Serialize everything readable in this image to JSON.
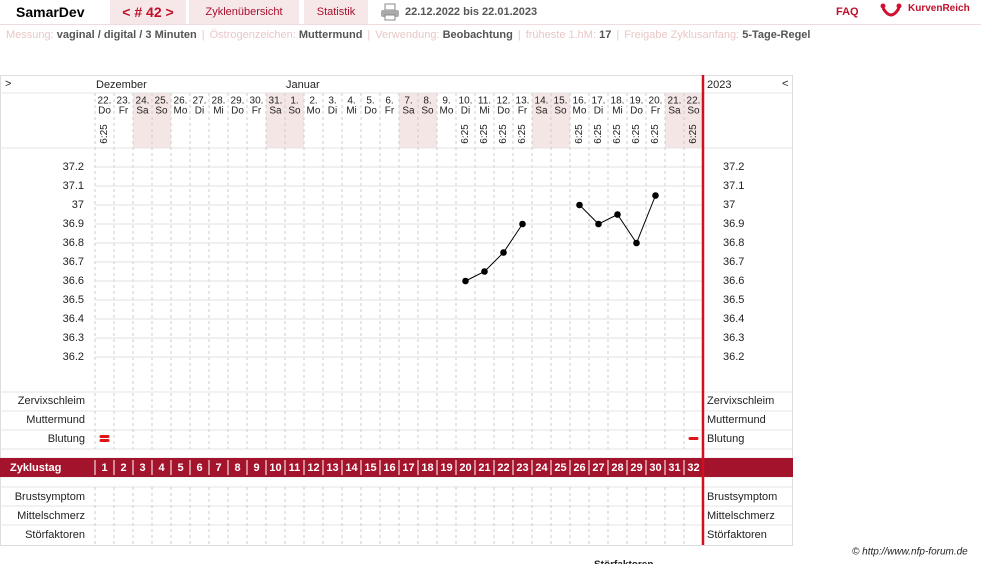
{
  "header": {
    "app": "SamarDev",
    "cycle": "< # 42 >",
    "tabs": [
      "Zyklenübersicht",
      "Statistik"
    ],
    "period": "22.12.2022 bis 22.01.2023",
    "faq": "FAQ",
    "logo": "KurvenReich"
  },
  "settings": [
    {
      "label": "Messung:",
      "value": "vaginal / digital / 3 Minuten"
    },
    {
      "label": "Östrogenzeichen:",
      "value": "Muttermund"
    },
    {
      "label": "Verwendung:",
      "value": "Beobachtung"
    },
    {
      "label": "früheste 1.hM:",
      "value": "17"
    },
    {
      "label": "Freigabe Zyklusanfang:",
      "value": "5-Tage-Regel"
    }
  ],
  "chart_data": {
    "type": "line",
    "nav_left": ">",
    "nav_right": "<",
    "year": "2023",
    "months": [
      "Dezember",
      null,
      null,
      null,
      null,
      null,
      null,
      null,
      null,
      null,
      "Januar",
      null,
      null,
      null,
      null,
      null,
      null,
      null,
      null,
      null,
      null,
      null,
      null,
      null,
      null,
      null,
      null,
      null,
      null,
      null,
      null,
      null
    ],
    "dates": [
      "22.",
      "23.",
      "24.",
      "25.",
      "26.",
      "27.",
      "28.",
      "29.",
      "30.",
      "31.",
      "1.",
      "2.",
      "3.",
      "4.",
      "5.",
      "6.",
      "7.",
      "8.",
      "9.",
      "10.",
      "11.",
      "12.",
      "13.",
      "14.",
      "15.",
      "16.",
      "17.",
      "18.",
      "19.",
      "20.",
      "21.",
      "22."
    ],
    "weekdays": [
      "Do",
      "Fr",
      "Sa",
      "So",
      "Mo",
      "Di",
      "Mi",
      "Do",
      "Fr",
      "Sa",
      "So",
      "Mo",
      "Di",
      "Mi",
      "Do",
      "Fr",
      "Sa",
      "So",
      "Mo",
      "Di",
      "Mi",
      "Do",
      "Fr",
      "Sa",
      "So",
      "Mo",
      "Di",
      "Mi",
      "Do",
      "Fr",
      "Sa",
      "So"
    ],
    "weekend": [
      false,
      false,
      true,
      true,
      false,
      false,
      false,
      false,
      false,
      true,
      true,
      false,
      false,
      false,
      false,
      false,
      true,
      true,
      false,
      false,
      false,
      false,
      false,
      true,
      true,
      false,
      false,
      false,
      false,
      false,
      true,
      true
    ],
    "times": [
      "6:25",
      null,
      null,
      null,
      null,
      null,
      null,
      null,
      null,
      null,
      null,
      null,
      null,
      null,
      null,
      null,
      null,
      null,
      null,
      "6:25",
      "6:25",
      "6:25",
      "6:25",
      null,
      null,
      "6:25",
      "6:25",
      "6:25",
      "6:25",
      "6:25",
      null,
      "6:25"
    ],
    "values": [
      null,
      null,
      null,
      null,
      null,
      null,
      null,
      null,
      null,
      null,
      null,
      null,
      null,
      null,
      null,
      null,
      null,
      null,
      null,
      36.6,
      36.65,
      36.75,
      36.9,
      null,
      null,
      37.0,
      36.9,
      36.95,
      36.8,
      37.05,
      null,
      null
    ],
    "color": "#000000",
    "ylim": [
      36.0,
      37.3
    ],
    "yticks": [
      36.2,
      36.3,
      36.4,
      36.5,
      36.6,
      36.7,
      36.8,
      36.9,
      37,
      37.1,
      37.2
    ],
    "grid": true,
    "row_labels": [
      "Zervixschleim",
      "Muttermund",
      "Blutung"
    ],
    "row_colors": [
      "#e07b10",
      "#4a55c8",
      "#000000"
    ],
    "bleeding": [
      2,
      null,
      null,
      null,
      null,
      null,
      null,
      null,
      null,
      null,
      null,
      null,
      null,
      null,
      null,
      null,
      null,
      null,
      null,
      null,
      null,
      null,
      null,
      null,
      null,
      null,
      null,
      null,
      null,
      null,
      null,
      1
    ],
    "bleeding_color": "#e01515",
    "cycle_label": "Zyklustag",
    "cycle_days": [
      1,
      2,
      3,
      4,
      5,
      6,
      7,
      8,
      9,
      10,
      11,
      12,
      13,
      14,
      15,
      16,
      17,
      18,
      19,
      20,
      21,
      22,
      23,
      24,
      25,
      26,
      27,
      28,
      29,
      30,
      31,
      32
    ],
    "bottom_labels": [
      "Brustsymptom",
      "Mittelschmerz",
      "Störfaktoren"
    ]
  },
  "footer": {
    "copyright": "© http://www.nfp-forum.de",
    "legend": "Störfaktoren"
  }
}
